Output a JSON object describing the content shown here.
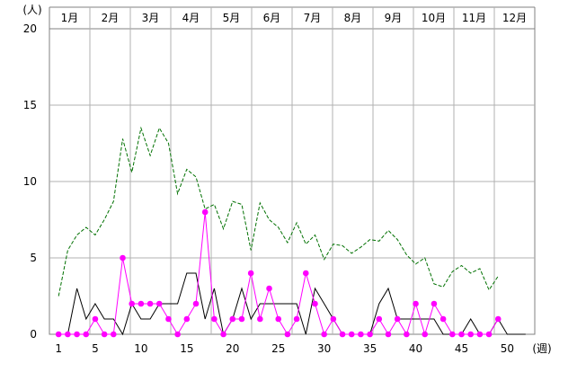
{
  "chart_data": {
    "type": "line",
    "y_unit_label": "(人)",
    "x_unit_label": "(週)",
    "months": [
      "1月",
      "2月",
      "3月",
      "4月",
      "5月",
      "6月",
      "7月",
      "8月",
      "9月",
      "10月",
      "11月",
      "12月"
    ],
    "xlim": [
      0,
      53
    ],
    "ylim": [
      0,
      20
    ],
    "y_ticks": [
      0,
      5,
      10,
      15,
      20
    ],
    "x_ticks": [
      1,
      5,
      10,
      15,
      20,
      25,
      30,
      35,
      40,
      45,
      50
    ],
    "grid": true,
    "series": [
      {
        "style": "dashed",
        "color": "#007000",
        "x": [
          1,
          2,
          3,
          4,
          5,
          6,
          7,
          8,
          9,
          10,
          11,
          12,
          13,
          14,
          15,
          16,
          17,
          18,
          19,
          20,
          21,
          22,
          23,
          24,
          25,
          26,
          27,
          28,
          29,
          30,
          31,
          32,
          33,
          34,
          35,
          36,
          37,
          38,
          39,
          40,
          41,
          42,
          43,
          44,
          45,
          46,
          47,
          48,
          49
        ],
        "values": [
          2.5,
          5.5,
          6.5,
          7.0,
          6.5,
          7.5,
          8.7,
          12.8,
          10.6,
          13.5,
          11.7,
          13.5,
          12.5,
          9.2,
          10.8,
          10.3,
          8.2,
          8.5,
          6.9,
          8.7,
          8.5,
          5.5,
          8.6,
          7.5,
          7.0,
          6.0,
          7.3,
          5.9,
          6.5,
          4.9,
          5.9,
          5.8,
          5.3,
          5.7,
          6.2,
          6.1,
          6.8,
          6.2,
          5.2,
          4.6,
          5.0,
          3.3,
          3.1,
          4.1,
          4.5,
          4.0,
          4.3,
          2.9,
          3.8
        ]
      },
      {
        "style": "solid",
        "color": "#000000",
        "x": [
          1,
          2,
          3,
          4,
          5,
          6,
          7,
          8,
          9,
          10,
          11,
          12,
          13,
          14,
          15,
          16,
          17,
          18,
          19,
          20,
          21,
          22,
          23,
          24,
          25,
          26,
          27,
          28,
          29,
          30,
          31,
          32,
          33,
          34,
          35,
          36,
          37,
          38,
          39,
          40,
          41,
          42,
          43,
          44,
          45,
          46,
          47,
          48,
          49,
          50,
          51,
          52
        ],
        "values": [
          0,
          0,
          3,
          1,
          2,
          1,
          1,
          0,
          2,
          1,
          1,
          2,
          2,
          2,
          4,
          4,
          1,
          3,
          0,
          1,
          3,
          1,
          2,
          2,
          2,
          2,
          2,
          0,
          3,
          2,
          1,
          0,
          0,
          0,
          0,
          2,
          3,
          1,
          1,
          1,
          1,
          1,
          0,
          0,
          0,
          1,
          0,
          0,
          1,
          0,
          0,
          0
        ]
      },
      {
        "style": "markers",
        "color": "#ff00ff",
        "x": [
          1,
          2,
          3,
          4,
          5,
          6,
          7,
          8,
          9,
          10,
          11,
          12,
          13,
          14,
          15,
          16,
          17,
          18,
          19,
          20,
          21,
          22,
          23,
          24,
          25,
          26,
          27,
          28,
          29,
          30,
          31,
          32,
          33,
          34,
          35,
          36,
          37,
          38,
          39,
          40,
          41,
          42,
          43,
          44,
          45,
          46,
          47,
          48,
          49
        ],
        "values": [
          0,
          0,
          0,
          0,
          1,
          0,
          0,
          5,
          2,
          2,
          2,
          2,
          1,
          0,
          1,
          2,
          8,
          1,
          0,
          1,
          1,
          4,
          1,
          3,
          1,
          0,
          1,
          4,
          2,
          0,
          1,
          0,
          0,
          0,
          0,
          1,
          0,
          1,
          0,
          2,
          0,
          2,
          1,
          0,
          0,
          0,
          0,
          0,
          1
        ]
      }
    ]
  }
}
